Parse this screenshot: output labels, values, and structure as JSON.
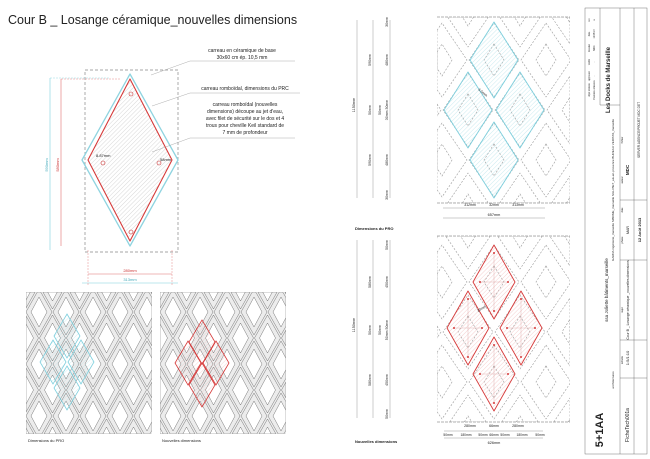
{
  "title": "Cour B _ Losange céramique_nouvelles dimensions",
  "colors": {
    "prc": "#7fd0de",
    "new": "#d63a3a",
    "grey": "#999999"
  },
  "annotations": {
    "base_tile_1": "carreau en céramique de base",
    "base_tile_2": "30x60 cm ép. 10,5 mm",
    "prc_tile": "carreau romboïdal, dimensions du PRC",
    "new_tile": [
      "carreau romboïdal (nouvelles",
      "dimensions) découpe au jet d'eau,",
      "avec filet de sécurité sur le dos et 4",
      "trous pour cheville Keil standard de",
      "7 mm de profondeur"
    ]
  },
  "main_detail": {
    "dim_height_prc": "590mm",
    "dim_height_new": "580mm",
    "dim_width_new": "280mm",
    "dim_width_prc": "313mm",
    "dim_hole": "8.87mm",
    "dim_edge": "58mm"
  },
  "pro_plan": {
    "label": "Dimensions du PRO",
    "total_height": "1150mm",
    "col2": [
      "590mm",
      "50mm",
      "590mm"
    ],
    "col3": [
      "30mm",
      "480mm",
      "50mm",
      "30mm 30mm",
      "480mm",
      "30mm"
    ],
    "bottom": [
      "312mm",
      "32mm",
      "313mm"
    ],
    "total_width": "657mm",
    "gap": "6.5mm"
  },
  "new_plan": {
    "label": "Nouvelles dimensions",
    "total_height": "1150mm",
    "col2": [
      "580mm",
      "50mm",
      "580mm"
    ],
    "col3": [
      "50mm",
      "450mm",
      "50mm",
      "50mm 50mm",
      "450mm",
      "50mm"
    ],
    "bottom_row1": [
      "280mm",
      "66mm",
      "280mm"
    ],
    "bottom_row2": [
      "50mm",
      "180mm",
      "50mm",
      "66mm",
      "50mm",
      "180mm",
      "50mm"
    ],
    "total_width": "626mm",
    "gap": "20mm"
  },
  "patterns": {
    "left_label": "Dimensions du PRO",
    "right_label": "Nouvelles dimensions"
  },
  "title_block": {
    "project": "Les Docks de Marseille",
    "client": "ssa Joliette bâtiments_marseille",
    "engineers": "GARDA ingénierie_marseille SIBOME_marseille SILH BET_aix-en-provence   BUREAU VERITAS_marseille",
    "architect": "5+1AA",
    "architect_sub": "architectures",
    "sheet": "FicheTech001a",
    "scale": "1:5/1:10",
    "sheet_title": "Cour B _ Losange céramique _nouvelles dimensions",
    "phase": "MAR",
    "date": "12 Août 2013",
    "author": "MDC",
    "path": "SERVER AGENCE\\PROJET MDC DET",
    "labels": {
      "echelle": "échelle",
      "sujet": "sujet",
      "phase": "phase",
      "date": "date",
      "auteur": "auteur",
      "fichier": "fichier"
    },
    "rev_headers": [
      "rev",
      "date",
      "dessiné",
      "vérifié",
      "approuvé",
      "objet révision"
    ],
    "rev_row": [
      "a",
      "12/08/13",
      "MDC",
      "-",
      "-",
      "Première émission"
    ]
  }
}
